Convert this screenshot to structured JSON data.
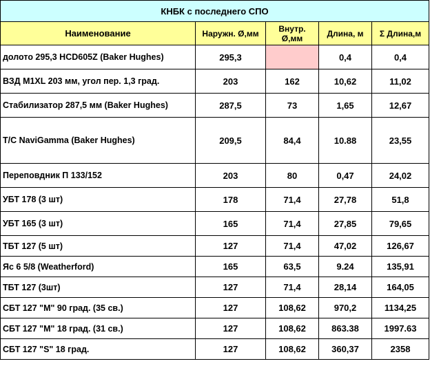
{
  "title": "КНБК с последнего СПО",
  "headers": {
    "name": "Наименование",
    "outer_d": "Наружн. Ø,мм",
    "inner_d_line1": "Внутр.",
    "inner_d_line2": "Ø,мм",
    "length": "Длина, м",
    "cum_length": "Σ  Длина,м"
  },
  "rows": [
    {
      "name": "долото 295,3 HCD605Z (Baker Hughes)",
      "outer_d": "295,3",
      "inner_d": "",
      "length": "0,4",
      "cum_length": "0,4"
    },
    {
      "name": "ВЗД M1XL 203 мм, угол пер. 1,3 град.",
      "outer_d": "203",
      "inner_d": "162",
      "length": "10,62",
      "cum_length": "11,02"
    },
    {
      "name": "Стабилизатор 287,5 мм (Baker Hughes)",
      "outer_d": "287,5",
      "inner_d": "73",
      "length": "1,65",
      "cum_length": "12,67"
    },
    {
      "name": "Т/С NaviGamma (Baker Hughes)",
      "outer_d": "209,5",
      "inner_d": "84,4",
      "length": "10.88",
      "cum_length": "23,55"
    },
    {
      "name": "Переповдник П 133/152",
      "outer_d": "203",
      "inner_d": "80",
      "length": "0,47",
      "cum_length": "24,02"
    },
    {
      "name": "УБТ 178 (3 шт)",
      "outer_d": "178",
      "inner_d": "71,4",
      "length": "27,78",
      "cum_length": "51,8"
    },
    {
      "name": "УБТ 165 (3 шт)",
      "outer_d": "165",
      "inner_d": "71,4",
      "length": "27,85",
      "cum_length": "79,65"
    },
    {
      "name": "ТБТ 127 (5 шт)",
      "outer_d": "127",
      "inner_d": "71,4",
      "length": "47,02",
      "cum_length": "126,67"
    },
    {
      "name": "Яс 6 5/8 (Weatherford)",
      "outer_d": "165",
      "inner_d": "63,5",
      "length": "9.24",
      "cum_length": "135,91"
    },
    {
      "name": "ТБТ 127 (3шт)",
      "outer_d": "127",
      "inner_d": "71,4",
      "length": "28,14",
      "cum_length": "164,05"
    },
    {
      "name": "СБТ 127 \"М\" 90 град. (35 св.)",
      "outer_d": "127",
      "inner_d": "108,62",
      "length": "970,2",
      "cum_length": "1134,25"
    },
    {
      "name": "СБТ 127 \"М\" 18 град. (31 св.)",
      "outer_d": "127",
      "inner_d": "108,62",
      "length": "863.38",
      "cum_length": "1997.63"
    },
    {
      "name": "СБТ 127 \"S\" 18 град.",
      "outer_d": "127",
      "inner_d": "108,62",
      "length": "360,37",
      "cum_length": "2358"
    }
  ],
  "colors": {
    "title_bg": "#ccffff",
    "header_bg": "#ffff99",
    "empty_inner_bg": "#ffcccc",
    "border": "#000000"
  }
}
